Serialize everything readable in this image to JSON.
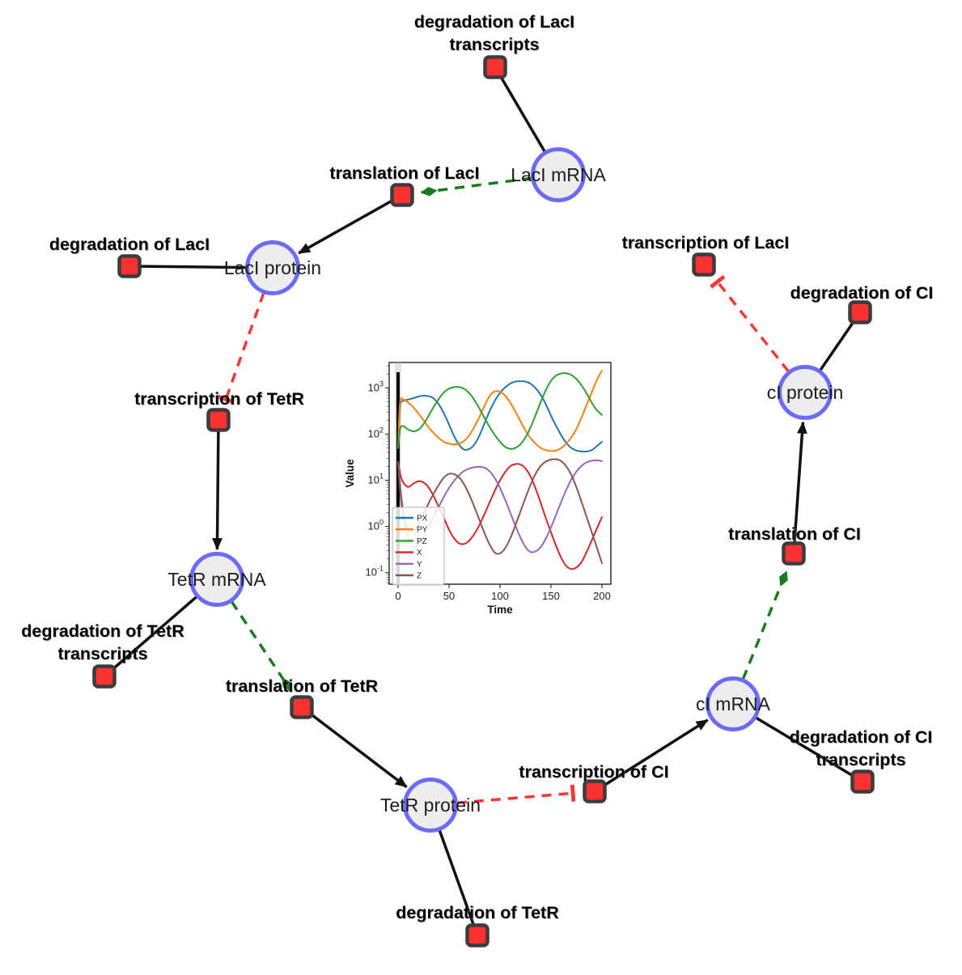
{
  "diagram": {
    "species": [
      {
        "id": "laci-mrna",
        "label": "LacI mRNA"
      },
      {
        "id": "laci-protein",
        "label": "LacI protein"
      },
      {
        "id": "tetr-mrna",
        "label": "TetR mRNA"
      },
      {
        "id": "tetr-protein",
        "label": "TetR protein"
      },
      {
        "id": "ci-mrna",
        "label": "cI mRNA"
      },
      {
        "id": "ci-protein",
        "label": "cI protein"
      }
    ],
    "reactions": [
      {
        "id": "deg-laci-transcripts",
        "lines": [
          "degradation of LacI",
          "transcripts"
        ]
      },
      {
        "id": "translation-laci",
        "lines": [
          "translation of LacI"
        ]
      },
      {
        "id": "deg-laci",
        "lines": [
          "degradation of LacI"
        ]
      },
      {
        "id": "transcription-tetr",
        "lines": [
          "transcription of TetR"
        ]
      },
      {
        "id": "deg-tetr-transcripts",
        "lines": [
          "degradation of TetR",
          "transcripts"
        ]
      },
      {
        "id": "translation-tetr",
        "lines": [
          "translation of TetR"
        ]
      },
      {
        "id": "deg-tetr",
        "lines": [
          "degradation of TetR"
        ]
      },
      {
        "id": "transcription-ci",
        "lines": [
          "transcription of CI"
        ]
      },
      {
        "id": "deg-ci-transcripts",
        "lines": [
          "degradation of CI",
          "transcripts"
        ]
      },
      {
        "id": "translation-ci",
        "lines": [
          "translation of CI"
        ]
      },
      {
        "id": "deg-ci",
        "lines": [
          "degradation of CI"
        ]
      },
      {
        "id": "transcription-laci",
        "lines": [
          "transcription of LacI"
        ]
      }
    ],
    "edges": [
      {
        "from": "laci-mrna",
        "to": "deg-laci-transcripts",
        "type": "consumption"
      },
      {
        "from": "laci-mrna",
        "to": "translation-laci",
        "type": "modifier"
      },
      {
        "from": "translation-laci",
        "to": "laci-protein",
        "type": "production"
      },
      {
        "from": "laci-protein",
        "to": "deg-laci",
        "type": "consumption"
      },
      {
        "from": "laci-protein",
        "to": "transcription-tetr",
        "type": "inhibition"
      },
      {
        "from": "transcription-tetr",
        "to": "tetr-mrna",
        "type": "production"
      },
      {
        "from": "tetr-mrna",
        "to": "deg-tetr-transcripts",
        "type": "consumption"
      },
      {
        "from": "tetr-mrna",
        "to": "translation-tetr",
        "type": "modifier"
      },
      {
        "from": "translation-tetr",
        "to": "tetr-protein",
        "type": "production"
      },
      {
        "from": "tetr-protein",
        "to": "deg-tetr",
        "type": "consumption"
      },
      {
        "from": "tetr-protein",
        "to": "transcription-ci",
        "type": "inhibition"
      },
      {
        "from": "transcription-ci",
        "to": "ci-mrna",
        "type": "production"
      },
      {
        "from": "ci-mrna",
        "to": "deg-ci-transcripts",
        "type": "consumption"
      },
      {
        "from": "ci-mrna",
        "to": "translation-ci",
        "type": "modifier"
      },
      {
        "from": "translation-ci",
        "to": "ci-protein",
        "type": "production"
      },
      {
        "from": "ci-protein",
        "to": "deg-ci",
        "type": "consumption"
      },
      {
        "from": "ci-protein",
        "to": "transcription-laci",
        "type": "inhibition"
      }
    ],
    "colors": {
      "species_fill": "#ededef",
      "species_stroke": "#6b6bfa",
      "reaction_fill": "#fa3232",
      "reaction_stroke": "#3c3c3c",
      "plain_edge": "#111111",
      "modifier": "#1a7a1f",
      "inhibition": "#fb3434"
    }
  },
  "chart_data": {
    "type": "line",
    "title": "",
    "xlabel": "Time",
    "ylabel": "Value",
    "y_scale": "log",
    "xlim": [
      0,
      200
    ],
    "ylim_exponents": [
      -1.25,
      3.55
    ],
    "x_ticks": [
      0,
      50,
      100,
      150,
      200
    ],
    "y_tick_exponents": [
      -1,
      0,
      1,
      2,
      3
    ],
    "legend_position": "lower left",
    "vline_x": 0,
    "grid": false,
    "x": [
      0,
      2,
      5,
      10,
      15,
      20,
      25,
      30,
      35,
      40,
      45,
      50,
      55,
      60,
      65,
      70,
      75,
      80,
      85,
      90,
      95,
      100,
      105,
      110,
      115,
      120,
      125,
      130,
      135,
      140,
      145,
      150,
      155,
      160,
      165,
      170,
      175,
      180,
      185,
      190,
      195,
      200
    ],
    "series": [
      {
        "name": "PX",
        "color": "#1f77b4",
        "values": [
          50,
          400,
          520,
          560,
          600,
          650,
          680,
          660,
          590,
          440,
          280,
          160,
          90,
          58,
          46,
          48,
          60,
          95,
          175,
          320,
          530,
          780,
          1030,
          1240,
          1370,
          1400,
          1370,
          1230,
          980,
          700,
          440,
          250,
          150,
          95,
          65,
          50,
          44,
          42,
          42,
          45,
          55,
          68
        ]
      },
      {
        "name": "PY",
        "color": "#ff7f0e",
        "values": [
          50,
          480,
          560,
          480,
          380,
          280,
          200,
          140,
          105,
          82,
          68,
          62,
          60,
          62,
          72,
          95,
          145,
          240,
          420,
          680,
          840,
          820,
          680,
          480,
          310,
          190,
          120,
          82,
          62,
          50,
          45,
          43,
          44,
          50,
          62,
          85,
          130,
          230,
          430,
          800,
          1500,
          2350
        ]
      },
      {
        "name": "PZ",
        "color": "#2ca02c",
        "values": [
          50,
          130,
          148,
          125,
          115,
          125,
          165,
          250,
          390,
          580,
          800,
          960,
          1040,
          1040,
          950,
          760,
          540,
          350,
          220,
          140,
          95,
          68,
          53,
          48,
          50,
          60,
          85,
          140,
          260,
          500,
          900,
          1420,
          1850,
          2050,
          2080,
          1900,
          1550,
          1130,
          760,
          480,
          330,
          260
        ]
      },
      {
        "name": "X",
        "color": "#d62728",
        "values": [
          25,
          14,
          9,
          7.2,
          8.5,
          9.5,
          9,
          7,
          4.5,
          2.6,
          1.5,
          0.85,
          0.55,
          0.43,
          0.42,
          0.5,
          0.7,
          1.1,
          1.9,
          3.4,
          6,
          10,
          15,
          20,
          22.5,
          22,
          18,
          12,
          6.5,
          3.2,
          1.5,
          0.75,
          0.38,
          0.21,
          0.14,
          0.12,
          0.13,
          0.17,
          0.28,
          0.5,
          0.9,
          1.6
        ]
      },
      {
        "name": "Y",
        "color": "#9467bd",
        "values": [
          25,
          8,
          2.2,
          0.55,
          0.36,
          0.42,
          0.6,
          0.95,
          1.6,
          2.7,
          4.4,
          6.8,
          9.8,
          13,
          16,
          18,
          19.2,
          19.5,
          18.6,
          15.5,
          11,
          6.8,
          3.8,
          2,
          1.05,
          0.58,
          0.36,
          0.28,
          0.29,
          0.36,
          0.55,
          0.95,
          1.8,
          3.4,
          6.2,
          10.5,
          15.5,
          20.5,
          24.5,
          26.5,
          27,
          26
        ]
      },
      {
        "name": "Z",
        "color": "#8c564b",
        "values": [
          25,
          6,
          1.8,
          0.85,
          0.8,
          1.1,
          1.9,
          3.2,
          5.2,
          8,
          11.5,
          13.8,
          13.5,
          11.5,
          8,
          4.8,
          2.6,
          1.35,
          0.7,
          0.4,
          0.27,
          0.26,
          0.34,
          0.55,
          1.05,
          2.1,
          4.2,
          8,
          14,
          20.5,
          25.5,
          28,
          28.5,
          26,
          20,
          13,
          7,
          3.4,
          1.6,
          0.75,
          0.35,
          0.16
        ]
      }
    ]
  }
}
